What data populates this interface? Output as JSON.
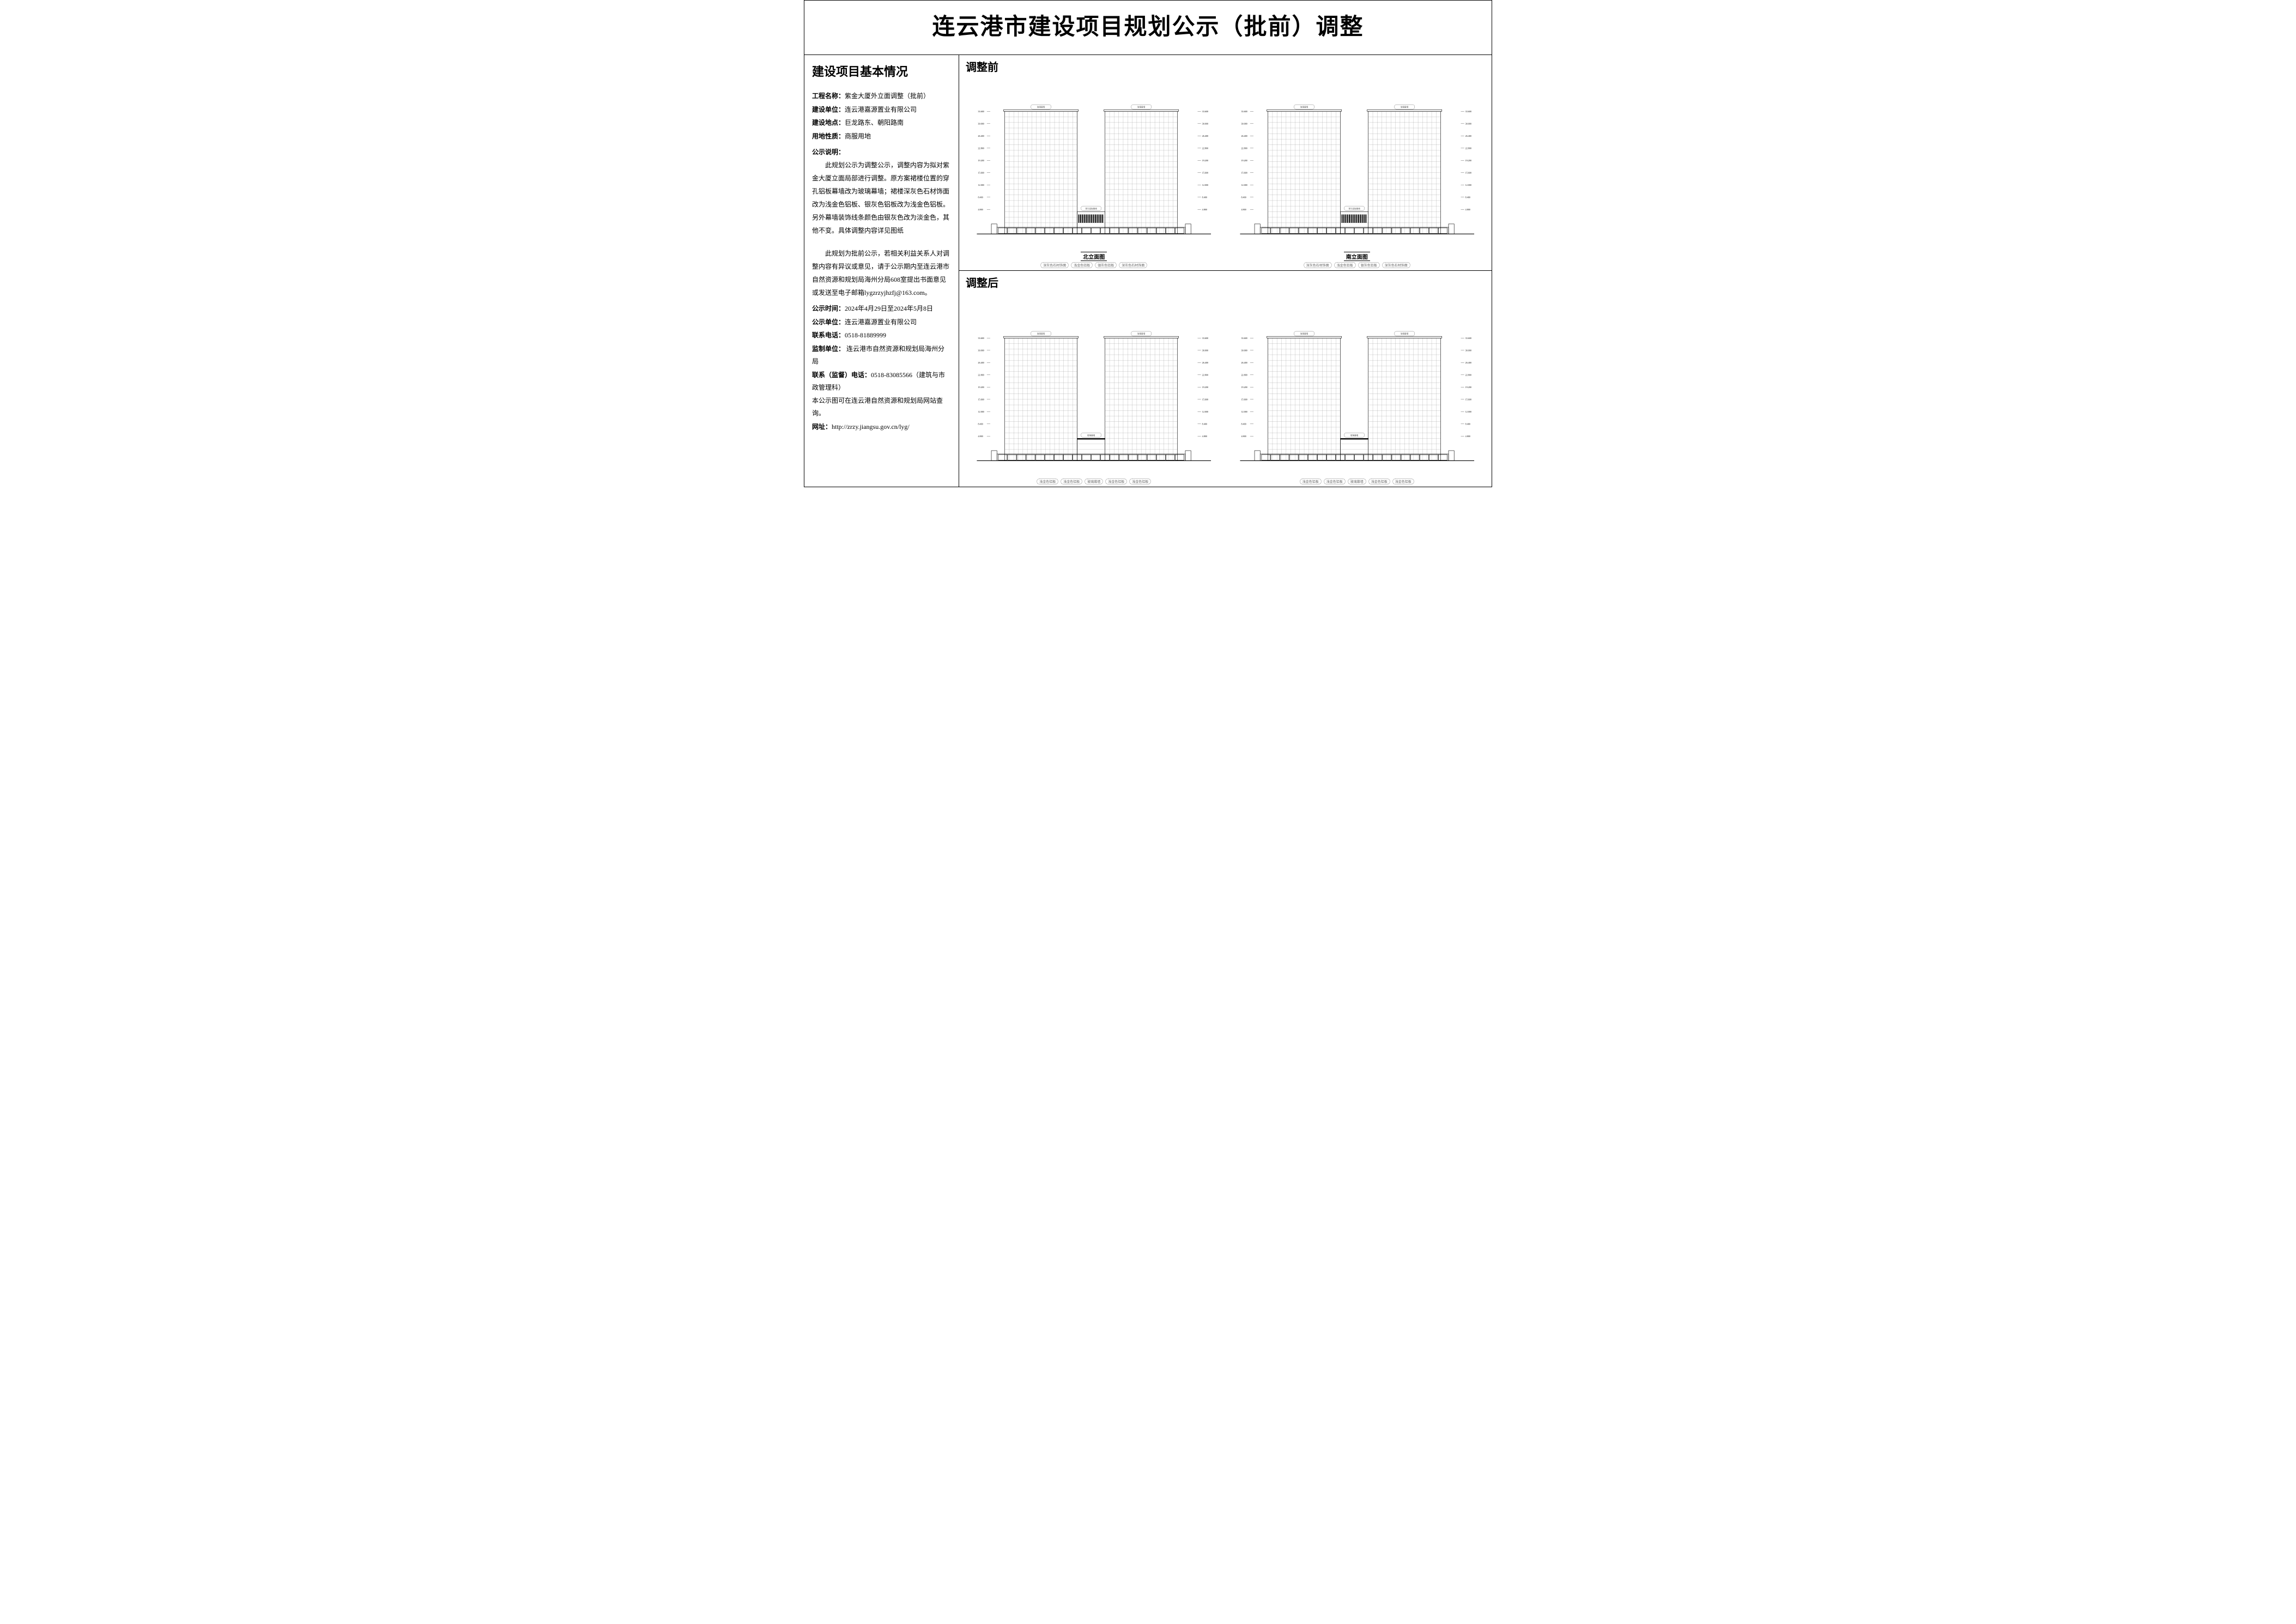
{
  "title": "连云港市建设项目规划公示（批前）调整",
  "sidebar": {
    "heading": "建设项目基本情况",
    "fields": [
      {
        "label": "工程名称：",
        "value": "紫金大厦外立面调整（批前）"
      },
      {
        "label": "建设单位：",
        "value": "连云港嘉源置业有限公司"
      },
      {
        "label": "建设地点：",
        "value": "巨龙路东、朝阳路南"
      },
      {
        "label": "用地性质：",
        "value": "商服用地"
      }
    ],
    "notice_label": "公示说明：",
    "notice_body": "此规划公示为调整公示，调整内容为拟对紫金大厦立面局部进行调整。原方案裙楼位置的穿孔铝板幕墙改为玻璃幕墙；裙楼深灰色石材饰面改为浅金色铝板、银灰色铝板改为浅金色铝板。另外幕墙装饰线条颜色由银灰色改为淡金色，其他不变。具体调整内容详见图纸",
    "appeal_body": "此规划为批前公示，若相关利益关系人对调整内容有异议或意见，请于公示期内至连云港市自然资源和规划局海州分局608室提出书面意见或发送至电子邮箱lygzrzyjhzfj@163.com。",
    "footer": [
      {
        "label": "公示时间：",
        "value": "2024年4月29日至2024年5月8日"
      },
      {
        "label": "公示单位：",
        "value": "连云港嘉源置业有限公司"
      },
      {
        "label": "联系电话：",
        "value": "0518-81889999"
      },
      {
        "label": "监制单位：",
        "value": " 连云港市自然资源和规划局海州分局"
      },
      {
        "label": "联系（监督）电话：",
        "value": "0518-83085566（建筑与市政管理科）"
      }
    ],
    "footer_note": "本公示图可在连云港自然资源和规划局网站查询。",
    "url_label": "网址：",
    "url": "http://zrzy.jiangsu.gov.cn/lyg/"
  },
  "sections": {
    "before": "调整前",
    "after": "调整后"
  },
  "elevations": {
    "north_caption": "北立面图",
    "south_caption": "南立面图",
    "tower_floors": 22,
    "podium_floors": 4,
    "dim_labels_left": [
      "33.600",
      "30.000",
      "26.400",
      "22.800",
      "19.200",
      "15.600",
      "12.000",
      "8.400",
      "4.800"
    ],
    "note_labels": {
      "glass": "玻璃幕墙",
      "alum_gold": "浅金色铝板",
      "alum_silver": "银灰色铝板",
      "stone": "深灰色石材饰面",
      "perf": "穿孔铝板幕墙"
    },
    "base_tags_before_n": [
      "深灰色石材饰面",
      "浅金色铝板",
      "银灰色铝板",
      "深灰色石材饰面"
    ],
    "base_tags_before_s": [
      "深灰色石材饰面",
      "浅金色铝板",
      "银灰色铝板",
      "深灰色石材饰面"
    ],
    "base_tags_after_n": [
      "浅金色铝板",
      "浅金色铝板",
      "玻璃幕墙",
      "浅金色铝板",
      "浅金色铝板"
    ],
    "base_tags_after_s": [
      "浅金色铝板",
      "浅金色铝板",
      "玻璃幕墙",
      "浅金色铝板",
      "浅金色铝板"
    ]
  },
  "style": {
    "page_border": "#000000",
    "background": "#ffffff",
    "text": "#000000",
    "grid_line": "#888888",
    "note_border": "#666666",
    "note_text": "#555555"
  }
}
